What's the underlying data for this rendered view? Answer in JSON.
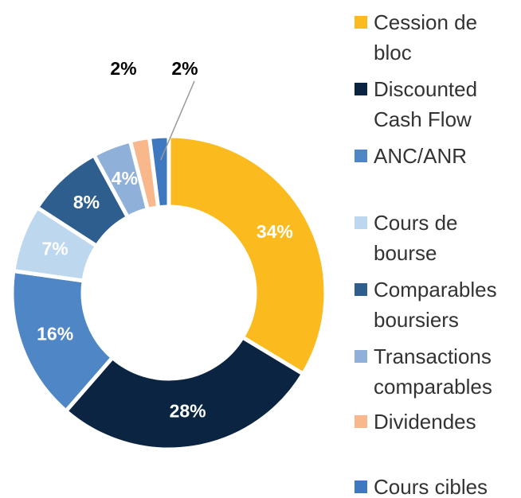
{
  "chart_data": {
    "type": "pie",
    "categories": [
      "Cession de bloc",
      "Discounted Cash Flow",
      "ANC/ANR",
      "Cours de bourse",
      "Comparables boursiers",
      "Transactions comparables",
      "Dividendes",
      "Cours cibles"
    ],
    "values": [
      34,
      28,
      16,
      7,
      8,
      4,
      2,
      2
    ],
    "value_labels": [
      "34%",
      "28%",
      "16%",
      "7%",
      "8%",
      "4%",
      "2%",
      "2%"
    ],
    "colors": [
      "#fbba1e",
      "#0b2441",
      "#4f86c6",
      "#bdd7ee",
      "#2e5e8e",
      "#8fb0d8",
      "#f8b88b",
      "#3e78c0"
    ],
    "donut": true,
    "legend": "right"
  }
}
